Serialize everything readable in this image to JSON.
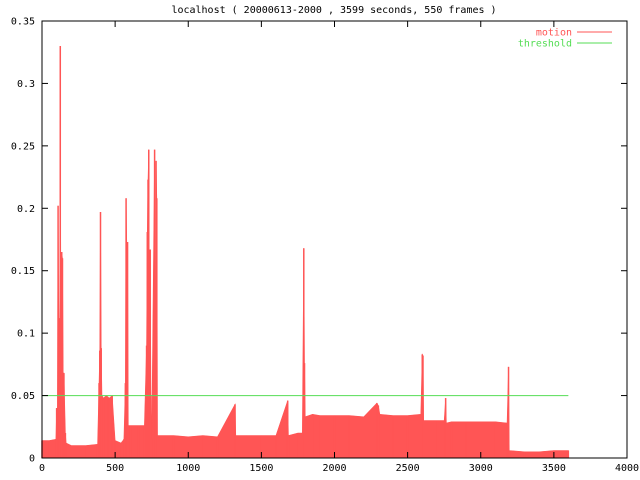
{
  "chart_data": {
    "type": "area",
    "title": "localhost ( 20000613-2000 , 3599 seconds, 550 frames )",
    "xlabel": "",
    "ylabel": "",
    "xlim": [
      0,
      4000
    ],
    "ylim": [
      0,
      0.35
    ],
    "x_ticks": [
      "0",
      "500",
      "1000",
      "1500",
      "2000",
      "2500",
      "3000",
      "3500",
      "4000"
    ],
    "x_tick_values": [
      0,
      500,
      1000,
      1500,
      2000,
      2500,
      3000,
      3500,
      4000
    ],
    "y_ticks": [
      "0",
      "0.05",
      "0.1",
      "0.15",
      "0.2",
      "0.25",
      "0.3",
      "0.35"
    ],
    "y_tick_values": [
      0,
      0.05,
      0.1,
      0.15,
      0.2,
      0.25,
      0.3,
      0.35
    ],
    "grid": false,
    "legend_position": "top-right",
    "series": [
      {
        "name": "motion",
        "color": "#ff5555",
        "style": "impulses",
        "points": [
          [
            0,
            0.014
          ],
          [
            50,
            0.014
          ],
          [
            95,
            0.015
          ],
          [
            100,
            0.04
          ],
          [
            105,
            0.038
          ],
          [
            110,
            0.202
          ],
          [
            115,
            0.112
          ],
          [
            120,
            0.06
          ],
          [
            125,
            0.33
          ],
          [
            130,
            0.07
          ],
          [
            135,
            0.165
          ],
          [
            140,
            0.16
          ],
          [
            145,
            0.068
          ],
          [
            150,
            0.068
          ],
          [
            160,
            0.02
          ],
          [
            165,
            0.012
          ],
          [
            200,
            0.01
          ],
          [
            300,
            0.01
          ],
          [
            380,
            0.011
          ],
          [
            390,
            0.06
          ],
          [
            395,
            0.086
          ],
          [
            400,
            0.197
          ],
          [
            405,
            0.088
          ],
          [
            410,
            0.05
          ],
          [
            420,
            0.048
          ],
          [
            440,
            0.05
          ],
          [
            460,
            0.048
          ],
          [
            480,
            0.05
          ],
          [
            500,
            0.014
          ],
          [
            540,
            0.012
          ],
          [
            560,
            0.015
          ],
          [
            570,
            0.06
          ],
          [
            575,
            0.208
          ],
          [
            580,
            0.17
          ],
          [
            585,
            0.173
          ],
          [
            590,
            0.026
          ],
          [
            620,
            0.026
          ],
          [
            660,
            0.026
          ],
          [
            700,
            0.026
          ],
          [
            715,
            0.09
          ],
          [
            720,
            0.181
          ],
          [
            725,
            0.223
          ],
          [
            730,
            0.247
          ],
          [
            735,
            0.1
          ],
          [
            740,
            0.167
          ],
          [
            745,
            0.05
          ],
          [
            750,
            0.016
          ],
          [
            770,
            0.247
          ],
          [
            775,
            0.05
          ],
          [
            780,
            0.238
          ],
          [
            785,
            0.208
          ],
          [
            790,
            0.018
          ],
          [
            900,
            0.018
          ],
          [
            1000,
            0.017
          ],
          [
            1100,
            0.018
          ],
          [
            1200,
            0.017
          ],
          [
            1320,
            0.043
          ],
          [
            1325,
            0.018
          ],
          [
            1400,
            0.018
          ],
          [
            1500,
            0.018
          ],
          [
            1600,
            0.018
          ],
          [
            1680,
            0.046
          ],
          [
            1685,
            0.018
          ],
          [
            1750,
            0.02
          ],
          [
            1780,
            0.02
          ],
          [
            1790,
            0.168
          ],
          [
            1795,
            0.076
          ],
          [
            1800,
            0.033
          ],
          [
            1850,
            0.035
          ],
          [
            1900,
            0.034
          ],
          [
            2000,
            0.034
          ],
          [
            2100,
            0.034
          ],
          [
            2200,
            0.033
          ],
          [
            2290,
            0.044
          ],
          [
            2300,
            0.042
          ],
          [
            2310,
            0.035
          ],
          [
            2400,
            0.034
          ],
          [
            2500,
            0.034
          ],
          [
            2590,
            0.035
          ],
          [
            2600,
            0.083
          ],
          [
            2605,
            0.082
          ],
          [
            2610,
            0.03
          ],
          [
            2700,
            0.03
          ],
          [
            2750,
            0.03
          ],
          [
            2760,
            0.048
          ],
          [
            2765,
            0.028
          ],
          [
            2800,
            0.029
          ],
          [
            2900,
            0.029
          ],
          [
            3000,
            0.029
          ],
          [
            3100,
            0.029
          ],
          [
            3180,
            0.028
          ],
          [
            3190,
            0.073
          ],
          [
            3195,
            0.006
          ],
          [
            3300,
            0.005
          ],
          [
            3400,
            0.005
          ],
          [
            3500,
            0.006
          ],
          [
            3599,
            0.006
          ]
        ]
      },
      {
        "name": "threshold",
        "color": "#55dd55",
        "style": "line",
        "points": [
          [
            0,
            0.05
          ],
          [
            3599,
            0.05
          ]
        ]
      }
    ]
  }
}
